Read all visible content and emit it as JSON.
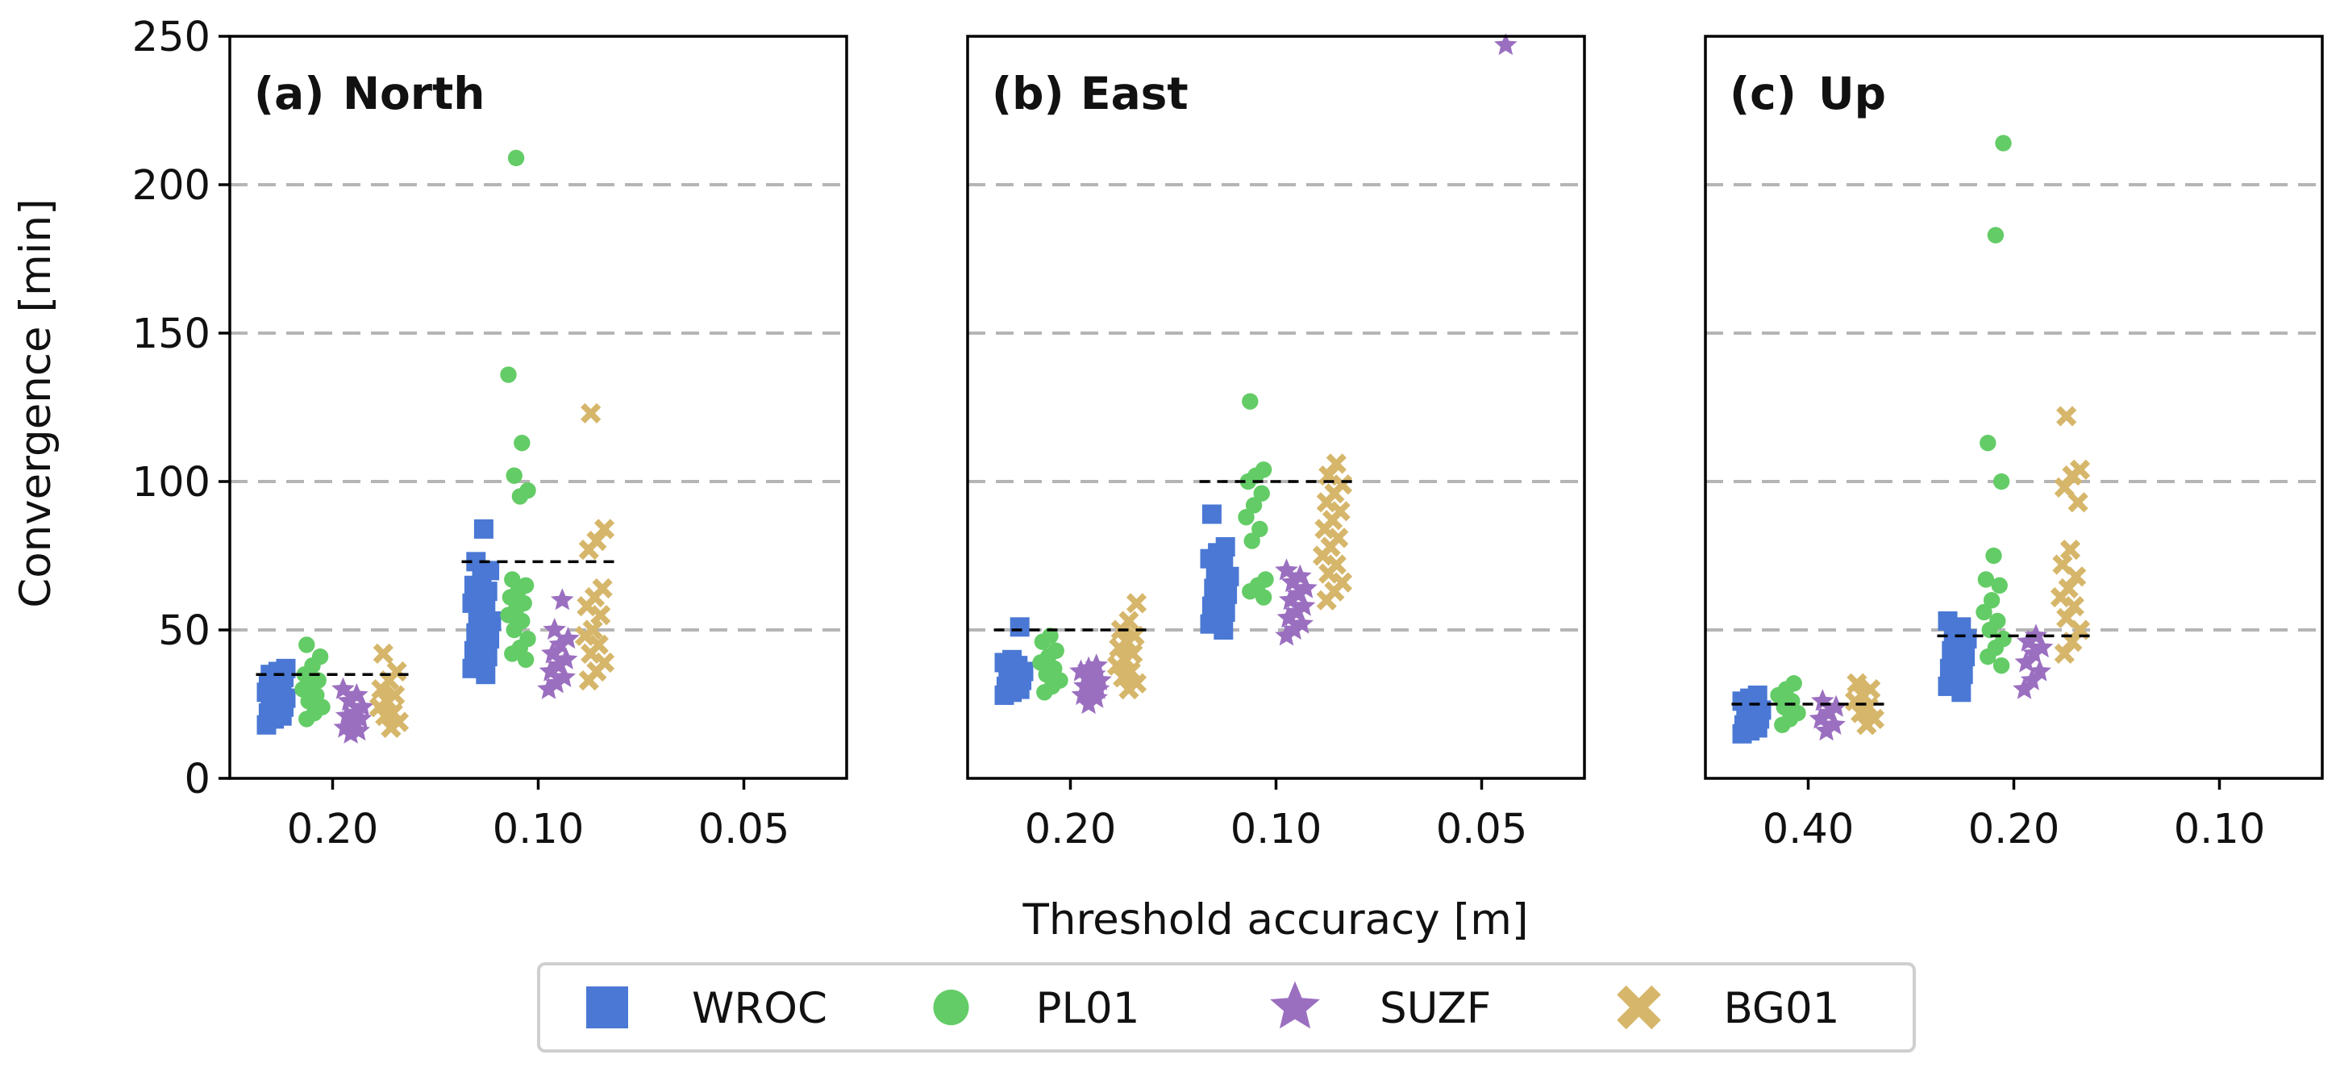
{
  "chart_data": {
    "type": "strip",
    "ylabel": "Convergence [min]",
    "xlabel": "Threshold accuracy [m]",
    "ylim": [
      0,
      250
    ],
    "yticks": [
      0,
      50,
      100,
      150,
      200,
      250
    ],
    "grid": "horizontal dashed at 50, 100, 150, 200",
    "legend": {
      "placement": "bottom-center",
      "entries": [
        {
          "name": "WROC",
          "color": "#4a78d4",
          "marker": "square"
        },
        {
          "name": "PL01",
          "color": "#63cc66",
          "marker": "circle"
        },
        {
          "name": "SUZF",
          "color": "#9b6fc0",
          "marker": "star"
        },
        {
          "name": "BG01",
          "color": "#d6b66a",
          "marker": "x"
        }
      ]
    },
    "panels": [
      {
        "letter": "(a)",
        "title": "North",
        "categories": [
          "0.20",
          "0.10",
          "0.05"
        ],
        "medians": [
          35,
          73,
          null
        ],
        "series": [
          {
            "name": "WROC",
            "points": [
              [
                0,
                [
                  18,
                  20,
                  21,
                  22,
                  23,
                  24,
                  25,
                  26,
                  27,
                  27,
                  28,
                  29,
                  30,
                  31,
                  32,
                  33,
                  34,
                  35,
                  36,
                  37
                ]
              ],
              [
                1,
                [
                  35,
                  37,
                  39,
                  41,
                  43,
                  45,
                  47,
                  49,
                  51,
                  53,
                  55,
                  57,
                  59,
                  61,
                  63,
                  65,
                  67,
                  70,
                  73,
                  84
                ]
              ]
            ]
          },
          {
            "name": "PL01",
            "points": [
              [
                0,
                [
                  20,
                  22,
                  24,
                  26,
                  28,
                  30,
                  32,
                  33,
                  35,
                  38,
                  41,
                  45
                ]
              ],
              [
                1,
                [
                  40,
                  42,
                  44,
                  47,
                  50,
                  53,
                  55,
                  57,
                  59,
                  61,
                  63,
                  65,
                  67,
                  95,
                  97,
                  102,
                  113,
                  136,
                  209
                ]
              ]
            ]
          },
          {
            "name": "SUZF",
            "points": [
              [
                0,
                [
                  15,
                  16,
                  17,
                  18,
                  20,
                  21,
                  22,
                  24,
                  26,
                  28,
                  30
                ]
              ],
              [
                1,
                [
                  30,
                  32,
                  34,
                  36,
                  38,
                  40,
                  42,
                  45,
                  47,
                  50,
                  60
                ]
              ]
            ]
          },
          {
            "name": "BG01",
            "points": [
              [
                0,
                [
                  17,
                  19,
                  21,
                  22,
                  24,
                  26,
                  28,
                  30,
                  33,
                  36,
                  42
                ]
              ],
              [
                1,
                [
                  33,
                  36,
                  39,
                  42,
                  45,
                  48,
                  50,
                  55,
                  58,
                  61,
                  64,
                  77,
                  80,
                  84,
                  123
                ]
              ]
            ]
          }
        ]
      },
      {
        "letter": "(b)",
        "title": "East",
        "categories": [
          "0.20",
          "0.10",
          "0.05"
        ],
        "medians": [
          50,
          100,
          null
        ],
        "series": [
          {
            "name": "WROC",
            "points": [
              [
                0,
                [
                  28,
                  29,
                  30,
                  31,
                  32,
                  33,
                  34,
                  35,
                  36,
                  37,
                  38,
                  39,
                  40,
                  51
                ]
              ],
              [
                1,
                [
                  50,
                  52,
                  54,
                  56,
                  58,
                  60,
                  62,
                  64,
                  66,
                  68,
                  70,
                  72,
                  74,
                  76,
                  78,
                  89
                ]
              ]
            ]
          },
          {
            "name": "PL01",
            "points": [
              [
                0,
                [
                  29,
                  31,
                  33,
                  35,
                  37,
                  39,
                  41,
                  43,
                  46,
                  48
                ]
              ],
              [
                1,
                [
                  61,
                  63,
                  65,
                  67,
                  80,
                  84,
                  88,
                  92,
                  96,
                  100,
                  102,
                  104,
                  127
                ]
              ]
            ]
          },
          {
            "name": "SUZF",
            "points": [
              [
                0,
                [
                  25,
                  27,
                  28,
                  29,
                  30,
                  31,
                  32,
                  33,
                  34,
                  35,
                  36,
                  37,
                  38
                ]
              ],
              [
                1,
                [
                  48,
                  50,
                  52,
                  54,
                  56,
                  58,
                  60,
                  62,
                  64,
                  66,
                  68,
                  70
                ]
              ],
              [
                2,
                [
                  247
                ]
              ]
            ]
          },
          {
            "name": "BG01",
            "points": [
              [
                0,
                [
                  30,
                  32,
                  34,
                  36,
                  38,
                  40,
                  42,
                  44,
                  46,
                  48,
                  50,
                  53,
                  59
                ]
              ],
              [
                1,
                [
                  60,
                  63,
                  66,
                  69,
                  72,
                  75,
                  78,
                  81,
                  84,
                  87,
                  90,
                  93,
                  96,
                  99,
                  102,
                  106
                ]
              ]
            ]
          }
        ]
      },
      {
        "letter": "(c)",
        "title": "Up",
        "categories": [
          "0.40",
          "0.20",
          "0.10"
        ],
        "medians": [
          25,
          48,
          null
        ],
        "series": [
          {
            "name": "WROC",
            "points": [
              [
                0,
                [
                  15,
                  16,
                  17,
                  18,
                  19,
                  20,
                  21,
                  22,
                  23,
                  24,
                  25,
                  26,
                  27,
                  28
                ]
              ],
              [
                1,
                [
                  29,
                  31,
                  33,
                  35,
                  37,
                  39,
                  41,
                  43,
                  45,
                  47,
                  49,
                  51,
                  53
                ]
              ]
            ]
          },
          {
            "name": "PL01",
            "points": [
              [
                0,
                [
                  18,
                  20,
                  22,
                  24,
                  26,
                  28,
                  30,
                  32
                ]
              ],
              [
                1,
                [
                  38,
                  41,
                  44,
                  47,
                  50,
                  53,
                  56,
                  60,
                  65,
                  67,
                  75,
                  100,
                  113,
                  183,
                  214
                ]
              ]
            ]
          },
          {
            "name": "SUZF",
            "points": [
              [
                0,
                [
                  16,
                  18,
                  20,
                  22,
                  24,
                  26
                ]
              ],
              [
                1,
                [
                  30,
                  33,
                  36,
                  39,
                  42,
                  44,
                  46,
                  48
                ]
              ]
            ]
          },
          {
            "name": "BG01",
            "points": [
              [
                0,
                [
                  18,
                  20,
                  22,
                  24,
                  26,
                  28,
                  30,
                  32
                ]
              ],
              [
                1,
                [
                  42,
                  46,
                  50,
                  54,
                  58,
                  61,
                  64,
                  68,
                  72,
                  77,
                  93,
                  98,
                  102,
                  104,
                  122
                ]
              ]
            ]
          }
        ]
      }
    ]
  }
}
